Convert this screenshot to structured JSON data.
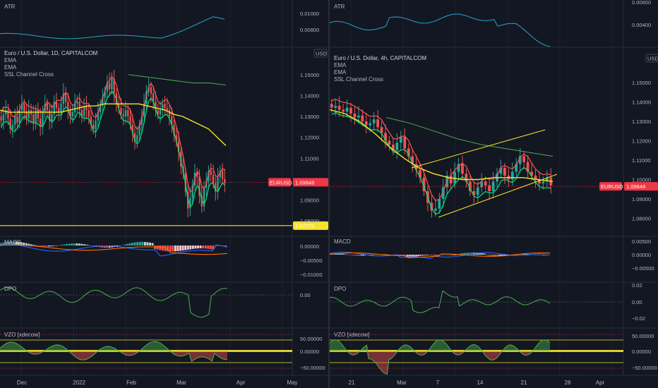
{
  "colors": {
    "background": "#131722",
    "grid": "#1e222d",
    "text": "#b2b5be",
    "candle_up": "#26a69a",
    "candle_down": "#ef5350",
    "ema_fast": "#f7e32b",
    "ema_slow": "#4caf50",
    "ssl_up": "#00e676",
    "ssl_down": "#ff5252",
    "atr": "#26a6c9",
    "macd_line": "#2962ff",
    "signal_line": "#ff6d00",
    "hist_pos_strong": "#26a69a",
    "hist_pos_weak": "#b2dfdb",
    "hist_neg_strong": "#ff5252",
    "hist_neg_weak": "#ffcdd2",
    "dpo": "#4caf50",
    "vzo_line": "#4caf50",
    "vzo_band": "#f7e32b",
    "price_tag": "#f23645",
    "level_tag": "#f7e32b",
    "trendline": "#f7e32b"
  },
  "left": {
    "symbol": "Euro / U.S. Dollar, 1D, CAPITALCOM",
    "currency": "USD",
    "legend": [
      "EMA",
      "EMA",
      "SSL Channel Cross"
    ],
    "atr_label": "ATR",
    "macd_label": "MACD",
    "dpo_label": "DPO",
    "vzo_label": "VZO [xdecow]",
    "ticker_tag": "EURUSD",
    "price_tag": "1.09848",
    "level_tag": "1.07775",
    "atr_ticks": [
      "0.01000",
      "0.00800"
    ],
    "price_ticks": [
      "1.15000",
      "1.14000",
      "1.13000",
      "1.12000",
      "1.11000",
      "1.09000",
      "1.08000"
    ],
    "macd_ticks": [
      "0.00000",
      "−0.00500",
      "−0.01000"
    ],
    "dpo_ticks": [
      "0.00"
    ],
    "vzo_ticks": [
      "50.00000",
      "0.00000",
      "−50.00000"
    ],
    "time_labels": [
      "Dec",
      "2022",
      "Feb",
      "Mar",
      "Apr",
      "May"
    ]
  },
  "right": {
    "symbol": "Euro / U.S. Dollar, 4h, CAPITALCOM",
    "currency": "USD",
    "legend": [
      "EMA",
      "EMA",
      "SSL Channel Cross"
    ],
    "atr_label": "ATR",
    "macd_label": "MACD",
    "dpo_label": "DPO",
    "vzo_label": "VZO [xdecow]",
    "ticker_tag": "EURUSD",
    "price_tag": "1.09648",
    "atr_ticks": [
      "0.00600",
      "0.00400"
    ],
    "price_ticks": [
      "1.15000",
      "1.14000",
      "1.13000",
      "1.12000",
      "1.11000",
      "1.10000",
      "1.09000",
      "1.08000"
    ],
    "macd_ticks": [
      "0.00500",
      "0.00000",
      "−0.00500"
    ],
    "dpo_ticks": [
      "0.02",
      "0.00",
      "−0.02"
    ],
    "vzo_ticks": [
      "50.00000",
      "0.00000",
      "−50.00000"
    ],
    "time_labels": [
      "21",
      "Mar",
      "7",
      "14",
      "21",
      "28",
      "Apr"
    ]
  },
  "chart_data": [
    {
      "type": "candlestick",
      "title": "Euro / U.S. Dollar, 1D, CAPITALCOM",
      "ylim": [
        1.076,
        1.156
      ],
      "last_price": 1.09848,
      "horizontal_level": 1.07775,
      "indicators": [
        "EMA",
        "EMA",
        "SSL Channel Cross",
        "ATR",
        "MACD",
        "DPO",
        "VZO [xdecow]"
      ],
      "x_labels": [
        "Dec",
        "2022",
        "Feb",
        "Mar",
        "Apr",
        "May"
      ],
      "series": [
        {
          "name": "close",
          "values": [
            1.128,
            1.131,
            1.133,
            1.129,
            1.124,
            1.126,
            1.13,
            1.127,
            1.133,
            1.136,
            1.132,
            1.129,
            1.133,
            1.131,
            1.127,
            1.133,
            1.129,
            1.125,
            1.132,
            1.136,
            1.133,
            1.128,
            1.131,
            1.137,
            1.134,
            1.132,
            1.136,
            1.141,
            1.137,
            1.133,
            1.13,
            1.132,
            1.136,
            1.137,
            1.133,
            1.13,
            1.135,
            1.133,
            1.13,
            1.126,
            1.124,
            1.128,
            1.132,
            1.135,
            1.139,
            1.142,
            1.146,
            1.143,
            1.148,
            1.141,
            1.136,
            1.134,
            1.131,
            1.13,
            1.133,
            1.13,
            1.126,
            1.122,
            1.118,
            1.121,
            1.126,
            1.13,
            1.136,
            1.142,
            1.144,
            1.141,
            1.137,
            1.133,
            1.131,
            1.133,
            1.136,
            1.134,
            1.133,
            1.13,
            1.126,
            1.121,
            1.118,
            1.113,
            1.106,
            1.103,
            1.094,
            1.086,
            1.091,
            1.097,
            1.103,
            1.101,
            1.092,
            1.087,
            1.096,
            1.099,
            1.104,
            1.102,
            1.098,
            1.094,
            1.101,
            1.104,
            1.1,
            1.098
          ]
        },
        {
          "name": "EMA",
          "values": [
            1.133,
            1.132,
            1.132,
            1.132,
            1.132,
            1.132,
            1.132,
            1.132,
            1.133,
            1.134,
            1.135,
            1.135,
            1.136,
            1.136,
            1.136,
            1.136,
            1.136,
            1.135,
            1.134,
            1.133,
            1.131,
            1.13,
            1.128,
            1.126,
            1.124,
            1.12,
            1.116
          ]
        },
        {
          "name": "EMA",
          "values": [
            1.15,
            1.149,
            1.148,
            1.147,
            1.146,
            1.146,
            1.145
          ]
        }
      ]
    },
    {
      "type": "candlestick",
      "title": "Euro / U.S. Dollar, 4h, CAPITALCOM",
      "ylim": [
        1.078,
        1.158
      ],
      "last_price": 1.09648,
      "indicators": [
        "EMA",
        "EMA",
        "SSL Channel Cross",
        "ATR",
        "MACD",
        "DPO",
        "VZO [xdecow]"
      ],
      "x_labels": [
        "21",
        "Mar",
        "7",
        "14",
        "21",
        "28",
        "Apr"
      ],
      "series": [
        {
          "name": "close",
          "values": [
            1.137,
            1.138,
            1.136,
            1.135,
            1.137,
            1.134,
            1.132,
            1.133,
            1.13,
            1.128,
            1.129,
            1.131,
            1.127,
            1.124,
            1.12,
            1.118,
            1.115,
            1.119,
            1.122,
            1.116,
            1.112,
            1.108,
            1.105,
            1.101,
            1.094,
            1.088,
            1.084,
            1.085,
            1.09,
            1.096,
            1.102,
            1.098,
            1.104,
            1.108,
            1.103,
            1.099,
            1.094,
            1.092,
            1.096,
            1.099,
            1.097,
            1.094,
            1.099,
            1.103,
            1.106,
            1.102,
            1.1,
            1.104,
            1.108,
            1.112,
            1.109,
            1.104,
            1.102,
            1.1,
            1.098,
            1.099,
            1.101,
            1.097
          ]
        },
        {
          "name": "EMA",
          "values": [
            1.136,
            1.134,
            1.13,
            1.124,
            1.117,
            1.111,
            1.106,
            1.103,
            1.101,
            1.1,
            1.1,
            1.101,
            1.101,
            1.101,
            1.1,
            1.099
          ]
        },
        {
          "name": "EMA",
          "values": [
            1.132,
            1.129,
            1.125,
            1.121,
            1.118,
            1.116,
            1.114,
            1.112
          ]
        }
      ]
    }
  ]
}
